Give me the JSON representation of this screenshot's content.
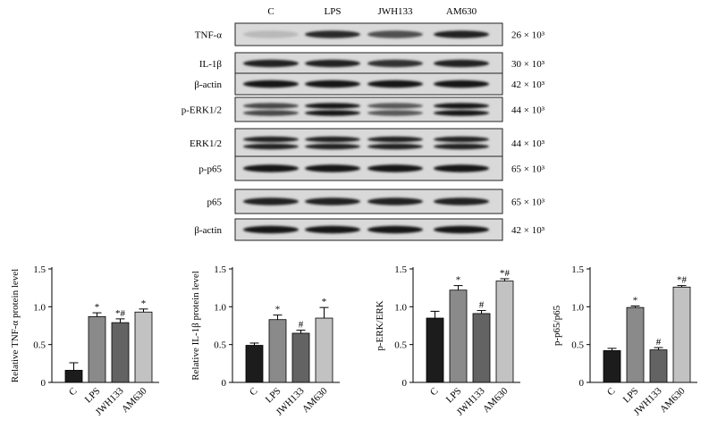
{
  "western_blot": {
    "lanes": [
      "C",
      "LPS",
      "JWH133",
      "AM630"
    ],
    "bands": [
      {
        "label": "TNF-α",
        "mw": "26 × 10³",
        "intensity": [
          0.08,
          0.85,
          0.65,
          0.9
        ]
      },
      {
        "label": "IL-1β",
        "mw": "30 × 10³",
        "intensity": [
          0.9,
          0.9,
          0.82,
          0.9
        ]
      },
      {
        "label": "β-actin",
        "mw": "42 × 10³",
        "intensity": [
          0.95,
          0.95,
          0.95,
          0.95
        ]
      },
      {
        "label": "p-ERK1/2",
        "mw": "44 × 10³",
        "intensity": [
          0.7,
          0.95,
          0.6,
          0.95
        ],
        "double": true
      },
      {
        "label": "ERK1/2",
        "mw": "44 × 10³",
        "intensity": [
          0.9,
          0.9,
          0.9,
          0.9
        ],
        "double": true
      },
      {
        "label": "p-p65",
        "mw": "65 × 10³",
        "intensity": [
          0.95,
          0.95,
          0.95,
          0.95
        ]
      },
      {
        "label": "p65",
        "mw": "65 × 10³",
        "intensity": [
          0.9,
          0.9,
          0.9,
          0.9
        ]
      },
      {
        "label": "β-actin",
        "mw": "42 × 10³",
        "intensity": [
          0.95,
          0.95,
          0.95,
          0.95
        ]
      }
    ]
  },
  "colors": {
    "C": "#1c1c1c",
    "LPS": "#8a8a8a",
    "JWH133": "#636363",
    "AM630": "#c2c2c2",
    "blot_bg": "#d9d9d9"
  },
  "chart_data": [
    {
      "type": "bar",
      "categories": [
        "C",
        "LPS",
        "JWH133",
        "AM630"
      ],
      "values": [
        0.16,
        0.87,
        0.79,
        0.93
      ],
      "errors": [
        0.1,
        0.05,
        0.05,
        0.04
      ],
      "significance": [
        "",
        "*",
        "*#",
        "*"
      ],
      "xlabel": "",
      "ylabel": "Relative TNF-α protein level",
      "ylim": [
        0,
        1.5
      ],
      "yticks": [
        "0",
        "0.5",
        "1.0",
        "1.5"
      ]
    },
    {
      "type": "bar",
      "categories": [
        "C",
        "LPS",
        "JWH133",
        "AM630"
      ],
      "values": [
        0.49,
        0.83,
        0.65,
        0.85
      ],
      "errors": [
        0.03,
        0.06,
        0.04,
        0.14
      ],
      "significance": [
        "",
        "*",
        "#",
        "*"
      ],
      "xlabel": "",
      "ylabel": "Relative IL-1β protein level",
      "ylim": [
        0,
        1.5
      ],
      "yticks": [
        "0",
        "0.5",
        "1.0",
        "1.5"
      ]
    },
    {
      "type": "bar",
      "categories": [
        "C",
        "LPS",
        "JWH133",
        "AM630"
      ],
      "values": [
        0.85,
        1.22,
        0.91,
        1.34
      ],
      "errors": [
        0.09,
        0.06,
        0.04,
        0.03
      ],
      "significance": [
        "",
        "*",
        "#",
        "*#"
      ],
      "xlabel": "",
      "ylabel": "p-ERK/ERK",
      "ylim": [
        0,
        1.5
      ],
      "yticks": [
        "0",
        "0.5",
        "1.0",
        "1.5"
      ]
    },
    {
      "type": "bar",
      "categories": [
        "C",
        "LPS",
        "JWH133",
        "AM630"
      ],
      "values": [
        0.42,
        0.99,
        0.43,
        1.26
      ],
      "errors": [
        0.03,
        0.02,
        0.03,
        0.02
      ],
      "significance": [
        "",
        "*",
        "#",
        "*#"
      ],
      "xlabel": "",
      "ylabel": "p-p65/p65",
      "ylim": [
        0,
        1.5
      ],
      "yticks": [
        "0",
        "0.5",
        "1.0",
        "1.5"
      ]
    }
  ]
}
